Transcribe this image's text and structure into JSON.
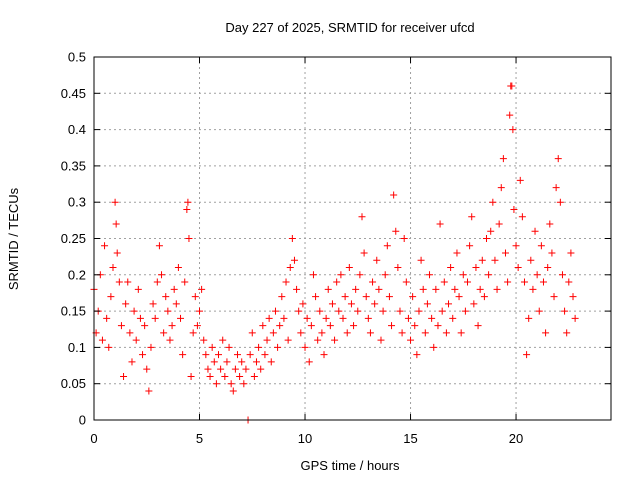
{
  "chart_data": {
    "type": "scatter",
    "title": "Day 227 of 2025, SRMTID for receiver ufcd",
    "xlabel": "GPS time / hours",
    "ylabel": "SRMTID / TECUs",
    "xlim": [
      0,
      24.5
    ],
    "ylim": [
      0,
      0.5
    ],
    "x_ticks": [
      0,
      5,
      10,
      15,
      20
    ],
    "x_tick_labels": [
      "0",
      "5",
      "10",
      "15",
      "20"
    ],
    "y_ticks": [
      0,
      0.05,
      0.1,
      0.15,
      0.2,
      0.25,
      0.3,
      0.35,
      0.4,
      0.45,
      0.5
    ],
    "y_tick_labels": [
      "0",
      "0.05",
      "0.1",
      "0.15",
      "0.2",
      "0.25",
      "0.3",
      "0.35",
      "0.4",
      "0.45",
      "0.5"
    ],
    "grid": true,
    "marker": "+",
    "marker_color": "#ff0000",
    "series": [
      {
        "name": "SRMTID",
        "points": [
          [
            0.0,
            0.18
          ],
          [
            0.1,
            0.12
          ],
          [
            0.2,
            0.15
          ],
          [
            0.3,
            0.2
          ],
          [
            0.4,
            0.11
          ],
          [
            0.5,
            0.24
          ],
          [
            0.6,
            0.14
          ],
          [
            0.7,
            0.1
          ],
          [
            0.8,
            0.17
          ],
          [
            0.9,
            0.21
          ],
          [
            1.0,
            0.3
          ],
          [
            1.05,
            0.27
          ],
          [
            1.1,
            0.23
          ],
          [
            1.2,
            0.19
          ],
          [
            1.3,
            0.13
          ],
          [
            1.4,
            0.06
          ],
          [
            1.5,
            0.16
          ],
          [
            1.6,
            0.19
          ],
          [
            1.7,
            0.12
          ],
          [
            1.8,
            0.08
          ],
          [
            1.9,
            0.15
          ],
          [
            2.0,
            0.11
          ],
          [
            2.1,
            0.18
          ],
          [
            2.2,
            0.14
          ],
          [
            2.3,
            0.09
          ],
          [
            2.4,
            0.13
          ],
          [
            2.5,
            0.07
          ],
          [
            2.6,
            0.04
          ],
          [
            2.7,
            0.1
          ],
          [
            2.8,
            0.16
          ],
          [
            2.9,
            0.14
          ],
          [
            3.0,
            0.19
          ],
          [
            3.1,
            0.24
          ],
          [
            3.2,
            0.2
          ],
          [
            3.3,
            0.12
          ],
          [
            3.4,
            0.17
          ],
          [
            3.5,
            0.15
          ],
          [
            3.6,
            0.11
          ],
          [
            3.7,
            0.13
          ],
          [
            3.8,
            0.18
          ],
          [
            3.9,
            0.16
          ],
          [
            4.0,
            0.21
          ],
          [
            4.1,
            0.14
          ],
          [
            4.2,
            0.09
          ],
          [
            4.3,
            0.19
          ],
          [
            4.4,
            0.29
          ],
          [
            4.45,
            0.3
          ],
          [
            4.5,
            0.25
          ],
          [
            4.6,
            0.06
          ],
          [
            4.7,
            0.12
          ],
          [
            4.8,
            0.17
          ],
          [
            4.9,
            0.13
          ],
          [
            5.0,
            0.15
          ],
          [
            5.1,
            0.18
          ],
          [
            5.2,
            0.11
          ],
          [
            5.3,
            0.09
          ],
          [
            5.4,
            0.07
          ],
          [
            5.5,
            0.06
          ],
          [
            5.6,
            0.1
          ],
          [
            5.7,
            0.08
          ],
          [
            5.8,
            0.05
          ],
          [
            5.9,
            0.09
          ],
          [
            6.0,
            0.07
          ],
          [
            6.1,
            0.11
          ],
          [
            6.2,
            0.06
          ],
          [
            6.3,
            0.08
          ],
          [
            6.4,
            0.1
          ],
          [
            6.5,
            0.05
          ],
          [
            6.6,
            0.04
          ],
          [
            6.7,
            0.07
          ],
          [
            6.8,
            0.09
          ],
          [
            6.9,
            0.06
          ],
          [
            7.0,
            0.08
          ],
          [
            7.1,
            0.05
          ],
          [
            7.2,
            0.07
          ],
          [
            7.3,
            0.0
          ],
          [
            7.4,
            0.09
          ],
          [
            7.5,
            0.12
          ],
          [
            7.6,
            0.06
          ],
          [
            7.7,
            0.08
          ],
          [
            7.8,
            0.1
          ],
          [
            7.9,
            0.07
          ],
          [
            8.0,
            0.13
          ],
          [
            8.1,
            0.09
          ],
          [
            8.2,
            0.11
          ],
          [
            8.3,
            0.14
          ],
          [
            8.4,
            0.08
          ],
          [
            8.5,
            0.12
          ],
          [
            8.6,
            0.15
          ],
          [
            8.7,
            0.1
          ],
          [
            8.8,
            0.13
          ],
          [
            8.9,
            0.17
          ],
          [
            9.0,
            0.14
          ],
          [
            9.1,
            0.19
          ],
          [
            9.2,
            0.11
          ],
          [
            9.3,
            0.21
          ],
          [
            9.4,
            0.25
          ],
          [
            9.5,
            0.22
          ],
          [
            9.6,
            0.18
          ],
          [
            9.7,
            0.15
          ],
          [
            9.8,
            0.12
          ],
          [
            9.9,
            0.16
          ],
          [
            10.0,
            0.1
          ],
          [
            10.1,
            0.14
          ],
          [
            10.2,
            0.08
          ],
          [
            10.3,
            0.13
          ],
          [
            10.4,
            0.2
          ],
          [
            10.5,
            0.17
          ],
          [
            10.6,
            0.11
          ],
          [
            10.7,
            0.15
          ],
          [
            10.8,
            0.12
          ],
          [
            10.9,
            0.09
          ],
          [
            11.0,
            0.14
          ],
          [
            11.1,
            0.18
          ],
          [
            11.2,
            0.13
          ],
          [
            11.3,
            0.16
          ],
          [
            11.4,
            0.11
          ],
          [
            11.5,
            0.19
          ],
          [
            11.6,
            0.15
          ],
          [
            11.7,
            0.2
          ],
          [
            11.8,
            0.14
          ],
          [
            11.9,
            0.17
          ],
          [
            12.0,
            0.12
          ],
          [
            12.1,
            0.21
          ],
          [
            12.2,
            0.16
          ],
          [
            12.3,
            0.13
          ],
          [
            12.4,
            0.18
          ],
          [
            12.5,
            0.15
          ],
          [
            12.6,
            0.2
          ],
          [
            12.7,
            0.28
          ],
          [
            12.8,
            0.23
          ],
          [
            12.9,
            0.17
          ],
          [
            13.0,
            0.14
          ],
          [
            13.1,
            0.12
          ],
          [
            13.2,
            0.19
          ],
          [
            13.3,
            0.16
          ],
          [
            13.4,
            0.22
          ],
          [
            13.5,
            0.18
          ],
          [
            13.6,
            0.11
          ],
          [
            13.7,
            0.15
          ],
          [
            13.8,
            0.2
          ],
          [
            13.9,
            0.24
          ],
          [
            14.0,
            0.17
          ],
          [
            14.1,
            0.13
          ],
          [
            14.2,
            0.31
          ],
          [
            14.3,
            0.26
          ],
          [
            14.4,
            0.21
          ],
          [
            14.5,
            0.15
          ],
          [
            14.6,
            0.12
          ],
          [
            14.7,
            0.25
          ],
          [
            14.8,
            0.19
          ],
          [
            14.9,
            0.14
          ],
          [
            15.0,
            0.11
          ],
          [
            15.1,
            0.17
          ],
          [
            15.2,
            0.13
          ],
          [
            15.3,
            0.09
          ],
          [
            15.4,
            0.15
          ],
          [
            15.5,
            0.22
          ],
          [
            15.6,
            0.18
          ],
          [
            15.7,
            0.12
          ],
          [
            15.8,
            0.16
          ],
          [
            15.9,
            0.2
          ],
          [
            16.0,
            0.14
          ],
          [
            16.1,
            0.1
          ],
          [
            16.2,
            0.18
          ],
          [
            16.3,
            0.13
          ],
          [
            16.4,
            0.27
          ],
          [
            16.5,
            0.15
          ],
          [
            16.6,
            0.19
          ],
          [
            16.7,
            0.12
          ],
          [
            16.8,
            0.16
          ],
          [
            16.9,
            0.21
          ],
          [
            17.0,
            0.14
          ],
          [
            17.1,
            0.18
          ],
          [
            17.2,
            0.23
          ],
          [
            17.3,
            0.17
          ],
          [
            17.4,
            0.12
          ],
          [
            17.5,
            0.2
          ],
          [
            17.6,
            0.15
          ],
          [
            17.7,
            0.19
          ],
          [
            17.8,
            0.24
          ],
          [
            17.9,
            0.28
          ],
          [
            18.0,
            0.16
          ],
          [
            18.1,
            0.21
          ],
          [
            18.2,
            0.13
          ],
          [
            18.3,
            0.18
          ],
          [
            18.4,
            0.22
          ],
          [
            18.5,
            0.17
          ],
          [
            18.6,
            0.25
          ],
          [
            18.7,
            0.2
          ],
          [
            18.8,
            0.26
          ],
          [
            18.9,
            0.3
          ],
          [
            19.0,
            0.22
          ],
          [
            19.1,
            0.18
          ],
          [
            19.2,
            0.27
          ],
          [
            19.3,
            0.32
          ],
          [
            19.4,
            0.36
          ],
          [
            19.5,
            0.23
          ],
          [
            19.6,
            0.19
          ],
          [
            19.7,
            0.42
          ],
          [
            19.75,
            0.46
          ],
          [
            19.8,
            0.46
          ],
          [
            19.85,
            0.4
          ],
          [
            19.9,
            0.29
          ],
          [
            20.0,
            0.24
          ],
          [
            20.1,
            0.21
          ],
          [
            20.2,
            0.33
          ],
          [
            20.3,
            0.28
          ],
          [
            20.4,
            0.19
          ],
          [
            20.5,
            0.09
          ],
          [
            20.6,
            0.14
          ],
          [
            20.7,
            0.22
          ],
          [
            20.8,
            0.18
          ],
          [
            20.9,
            0.26
          ],
          [
            21.0,
            0.2
          ],
          [
            21.1,
            0.15
          ],
          [
            21.2,
            0.24
          ],
          [
            21.3,
            0.19
          ],
          [
            21.4,
            0.12
          ],
          [
            21.5,
            0.21
          ],
          [
            21.6,
            0.27
          ],
          [
            21.7,
            0.23
          ],
          [
            21.8,
            0.17
          ],
          [
            21.9,
            0.32
          ],
          [
            22.0,
            0.36
          ],
          [
            22.1,
            0.3
          ],
          [
            22.2,
            0.2
          ],
          [
            22.3,
            0.15
          ],
          [
            22.4,
            0.12
          ],
          [
            22.5,
            0.19
          ],
          [
            22.6,
            0.23
          ],
          [
            22.7,
            0.17
          ],
          [
            22.8,
            0.14
          ]
        ]
      }
    ]
  }
}
